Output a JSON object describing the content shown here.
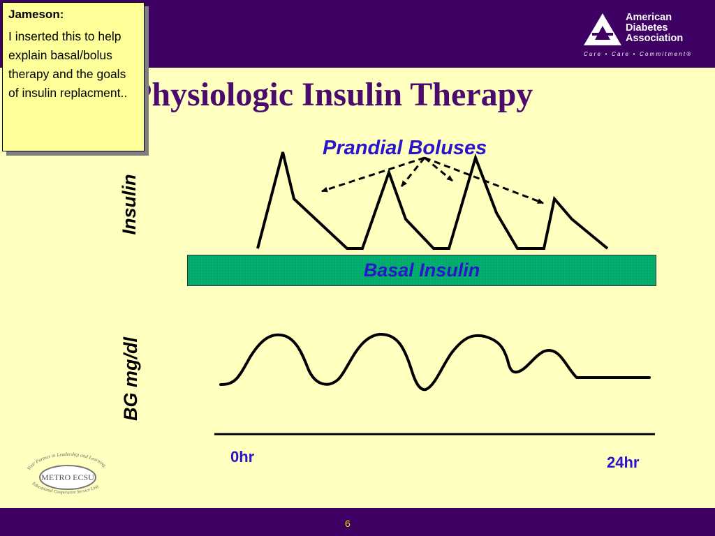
{
  "slide": {
    "title": "Physiologic Insulin Therapy",
    "page_number": "6"
  },
  "note": {
    "author": "Jameson:",
    "text": "I inserted this to help explain basal/bolus therapy and the goals of insulin replacment.."
  },
  "ada_logo": {
    "line1": "American",
    "line2": "Diabetes",
    "line3": "Association",
    "tagline": "Cure • Care • Commitment®"
  },
  "ecsu_logo": {
    "top_arc": "Your Partner in Leadership and Learning",
    "name": "METRO ECSU",
    "bottom_arc": "Educational Cooperative Service Unit"
  },
  "diagram": {
    "y_label_top": "Insulin",
    "y_label_bottom": "BG mg/dl",
    "prandial_label": "Prandial Boluses",
    "basal_label": "Basal Insulin",
    "x_start": "0hr",
    "x_end": "24hr"
  },
  "colors": {
    "band": "#3F0063",
    "background": "#FFFFC0",
    "accent_text": "#2A14CC",
    "basal_fill": "#00B070",
    "note_fill": "#FFFF99"
  }
}
